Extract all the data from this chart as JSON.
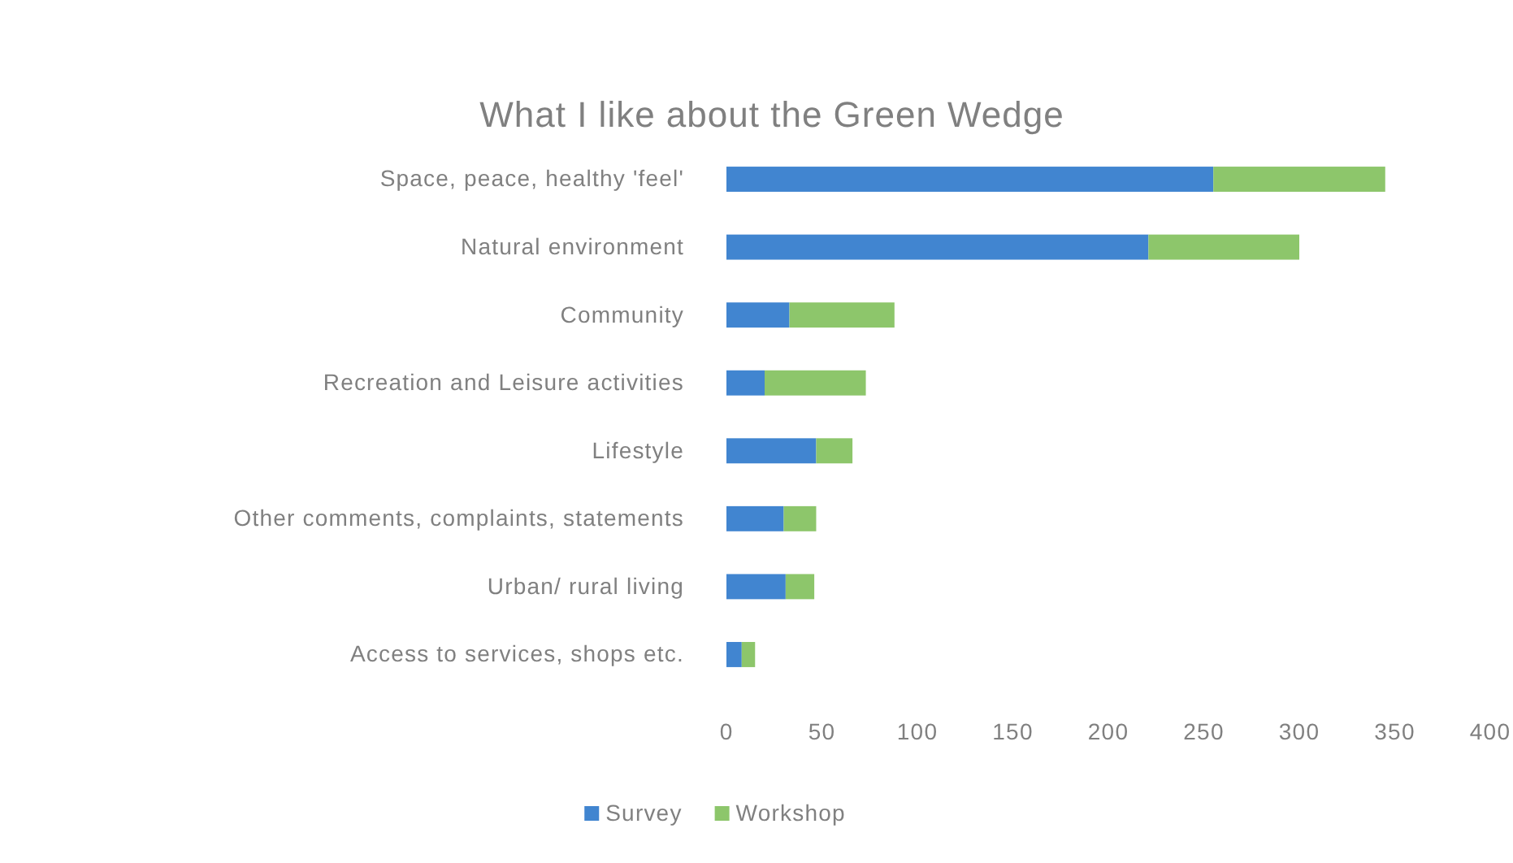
{
  "chart_data": {
    "type": "bar",
    "orientation": "horizontal",
    "stacked": true,
    "title": "What I like about the Green Wedge",
    "categories": [
      "Space, peace, healthy 'feel'",
      "Natural environment",
      "Community",
      "Recreation and Leisure activities",
      "Lifestyle",
      "Other comments, complaints, statements",
      "Urban/ rural living",
      "Access to services, shops etc."
    ],
    "series": [
      {
        "name": "Survey",
        "color": "#4185d0",
        "values": [
          255,
          221,
          33,
          20,
          47,
          30,
          31,
          8
        ]
      },
      {
        "name": "Workshop",
        "color": "#8dc66b",
        "values": [
          90,
          79,
          55,
          53,
          19,
          17,
          15,
          7
        ]
      }
    ],
    "xlim": [
      0,
      400
    ],
    "xticks": [
      0,
      50,
      100,
      150,
      200,
      250,
      300,
      350,
      400
    ],
    "grid": false,
    "legend": "bottom"
  }
}
